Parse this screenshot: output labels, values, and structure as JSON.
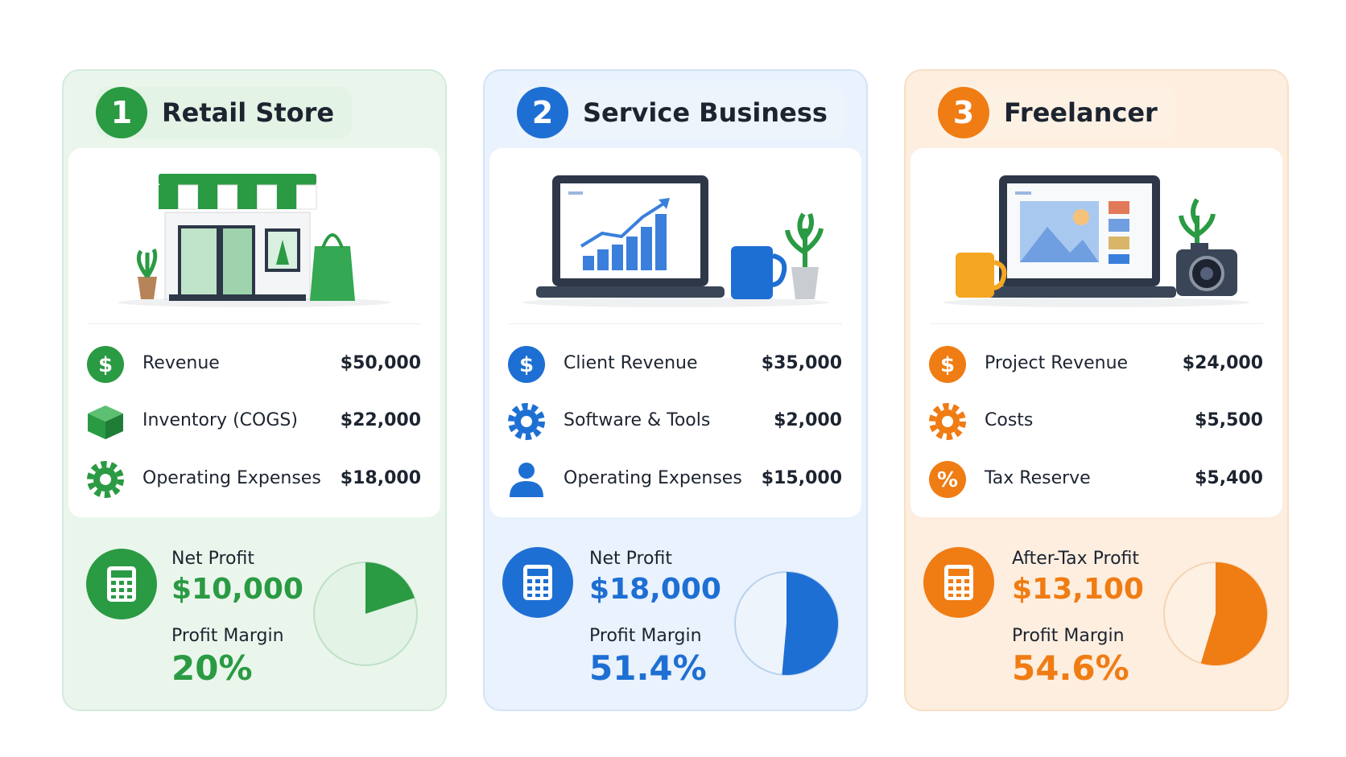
{
  "cards": [
    {
      "number": 1,
      "title": "Retail Store",
      "items": [
        {
          "icon": "$",
          "label": "Revenue",
          "amount": "$50,000"
        },
        {
          "label": "Inventory (COGS)",
          "amount": "$22,000"
        },
        {
          "label": "Operating Expenses",
          "amount": "$18,000"
        }
      ],
      "profit_label": "Net Profit",
      "profit": "$10,000",
      "margin_label": "Profit Margin",
      "margin": {
        "value": 20,
        "label": "20%"
      }
    },
    {
      "number": 2,
      "title": "Service Business",
      "items": [
        {
          "icon": "$",
          "label": "Client Revenue",
          "amount": "$35,000"
        },
        {
          "label": "Software & Tools",
          "amount": "$2,000"
        },
        {
          "label": "Operating Expenses",
          "amount": "$15,000"
        }
      ],
      "profit_label": "Net Profit",
      "profit": "$18,000",
      "margin_label": "Profit Margin",
      "margin": {
        "value": 51.4,
        "label": "51.4%"
      }
    },
    {
      "number": 3,
      "title": "Freelancer",
      "items": [
        {
          "icon": "$",
          "label": "Project Revenue",
          "amount": "$24,000"
        },
        {
          "label": "Costs",
          "amount": "$5,500"
        },
        {
          "icon": "%",
          "label": "Tax Reserve",
          "amount": "$5,400"
        }
      ],
      "profit_label": "After-Tax Profit",
      "profit": "$13,100",
      "margin_label": "Profit Margin",
      "margin": {
        "value": 54.6,
        "label": "54.6%"
      }
    }
  ]
}
